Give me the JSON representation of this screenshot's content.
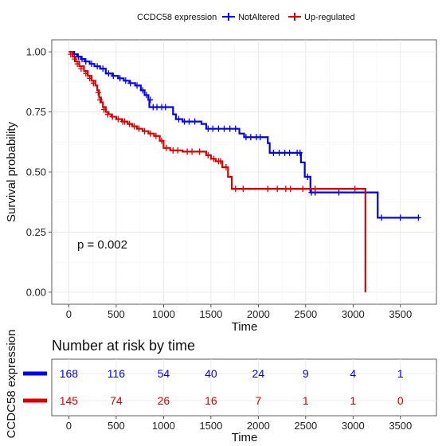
{
  "chart_data": {
    "type": "line",
    "subtype": "kaplan-meier",
    "legend": {
      "title": "CCDC58 expression",
      "placement": "top",
      "entries": [
        "NotAltered",
        "Up-regulated"
      ]
    },
    "xlabel": "Time",
    "ylabel": "Survival probability",
    "xlim": [
      -180,
      3880
    ],
    "ylim": [
      -0.05,
      1.05
    ],
    "xticks": [
      0,
      500,
      1000,
      1500,
      2000,
      2500,
      3000,
      3500
    ],
    "xtick_labels": [
      "0",
      "500",
      "1000",
      "1500",
      "2000",
      "2500",
      "3000",
      "3500"
    ],
    "yticks": [
      0,
      0.25,
      0.5,
      0.75,
      1.0
    ],
    "ytick_labels": [
      "0.00",
      "0.25",
      "0.50",
      "0.75",
      "1.00"
    ],
    "grid": true,
    "annotation": "p = 0.002",
    "series": [
      {
        "name": "NotAltered",
        "color": "#0000ff",
        "steps": [
          [
            0,
            1.0
          ],
          [
            50,
            0.99
          ],
          [
            90,
            0.98
          ],
          [
            130,
            0.97
          ],
          [
            170,
            0.96
          ],
          [
            220,
            0.95
          ],
          [
            270,
            0.94
          ],
          [
            330,
            0.93
          ],
          [
            390,
            0.91
          ],
          [
            460,
            0.9
          ],
          [
            520,
            0.89
          ],
          [
            580,
            0.88
          ],
          [
            640,
            0.87
          ],
          [
            700,
            0.86
          ],
          [
            760,
            0.84
          ],
          [
            800,
            0.82
          ],
          [
            840,
            0.8
          ],
          [
            850,
            0.77
          ],
          [
            1100,
            0.74
          ],
          [
            1130,
            0.72
          ],
          [
            1200,
            0.71
          ],
          [
            1400,
            0.7
          ],
          [
            1450,
            0.68
          ],
          [
            1800,
            0.66
          ],
          [
            1850,
            0.645
          ],
          [
            2100,
            0.62
          ],
          [
            2120,
            0.58
          ],
          [
            2450,
            0.54
          ],
          [
            2490,
            0.48
          ],
          [
            2550,
            0.415
          ],
          [
            3260,
            0.31
          ],
          [
            3700,
            0.31
          ]
        ],
        "censor": [
          [
            60,
            0.99
          ],
          [
            100,
            0.98
          ],
          [
            140,
            0.97
          ],
          [
            180,
            0.96
          ],
          [
            240,
            0.95
          ],
          [
            300,
            0.94
          ],
          [
            360,
            0.93
          ],
          [
            420,
            0.91
          ],
          [
            470,
            0.9
          ],
          [
            540,
            0.89
          ],
          [
            600,
            0.88
          ],
          [
            650,
            0.87
          ],
          [
            720,
            0.86
          ],
          [
            780,
            0.84
          ],
          [
            820,
            0.82
          ],
          [
            860,
            0.8
          ],
          [
            890,
            0.77
          ],
          [
            930,
            0.77
          ],
          [
            980,
            0.77
          ],
          [
            1020,
            0.77
          ],
          [
            1160,
            0.72
          ],
          [
            1220,
            0.71
          ],
          [
            1270,
            0.71
          ],
          [
            1330,
            0.71
          ],
          [
            1470,
            0.68
          ],
          [
            1520,
            0.68
          ],
          [
            1580,
            0.68
          ],
          [
            1640,
            0.68
          ],
          [
            1700,
            0.68
          ],
          [
            1760,
            0.68
          ],
          [
            1870,
            0.645
          ],
          [
            1920,
            0.645
          ],
          [
            1980,
            0.645
          ],
          [
            2020,
            0.645
          ],
          [
            2160,
            0.58
          ],
          [
            2220,
            0.58
          ],
          [
            2280,
            0.58
          ],
          [
            2330,
            0.58
          ],
          [
            2410,
            0.58
          ],
          [
            2440,
            0.58
          ],
          [
            2520,
            0.48
          ],
          [
            2560,
            0.415
          ],
          [
            2600,
            0.415
          ],
          [
            2850,
            0.415
          ],
          [
            3300,
            0.31
          ],
          [
            3500,
            0.31
          ],
          [
            3690,
            0.31
          ]
        ]
      },
      {
        "name": "Up-regulated",
        "color": "#dd0000",
        "steps": [
          [
            0,
            1.0
          ],
          [
            40,
            0.98
          ],
          [
            70,
            0.96
          ],
          [
            110,
            0.94
          ],
          [
            160,
            0.92
          ],
          [
            200,
            0.9
          ],
          [
            240,
            0.88
          ],
          [
            280,
            0.86
          ],
          [
            300,
            0.84
          ],
          [
            320,
            0.81
          ],
          [
            340,
            0.79
          ],
          [
            360,
            0.77
          ],
          [
            390,
            0.75
          ],
          [
            420,
            0.74
          ],
          [
            450,
            0.73
          ],
          [
            500,
            0.72
          ],
          [
            560,
            0.71
          ],
          [
            620,
            0.7
          ],
          [
            670,
            0.69
          ],
          [
            720,
            0.68
          ],
          [
            780,
            0.67
          ],
          [
            840,
            0.66
          ],
          [
            900,
            0.65
          ],
          [
            960,
            0.63
          ],
          [
            1000,
            0.6
          ],
          [
            1070,
            0.59
          ],
          [
            1200,
            0.585
          ],
          [
            1450,
            0.57
          ],
          [
            1500,
            0.555
          ],
          [
            1550,
            0.545
          ],
          [
            1620,
            0.52
          ],
          [
            1680,
            0.48
          ],
          [
            1720,
            0.43
          ],
          [
            3120,
            0.43
          ],
          [
            3130,
            0.0
          ]
        ],
        "censor": [
          [
            20,
            0.99
          ],
          [
            60,
            0.97
          ],
          [
            90,
            0.95
          ],
          [
            130,
            0.93
          ],
          [
            180,
            0.91
          ],
          [
            220,
            0.89
          ],
          [
            260,
            0.87
          ],
          [
            310,
            0.83
          ],
          [
            330,
            0.8
          ],
          [
            370,
            0.76
          ],
          [
            410,
            0.74
          ],
          [
            460,
            0.73
          ],
          [
            520,
            0.72
          ],
          [
            570,
            0.71
          ],
          [
            590,
            0.71
          ],
          [
            640,
            0.7
          ],
          [
            690,
            0.69
          ],
          [
            740,
            0.68
          ],
          [
            800,
            0.67
          ],
          [
            860,
            0.66
          ],
          [
            920,
            0.65
          ],
          [
            980,
            0.63
          ],
          [
            1030,
            0.6
          ],
          [
            1100,
            0.59
          ],
          [
            1150,
            0.59
          ],
          [
            1250,
            0.585
          ],
          [
            1300,
            0.585
          ],
          [
            1380,
            0.585
          ],
          [
            1470,
            0.57
          ],
          [
            1530,
            0.555
          ],
          [
            1580,
            0.545
          ],
          [
            1600,
            0.545
          ],
          [
            1660,
            0.52
          ],
          [
            1760,
            0.43
          ],
          [
            1840,
            0.43
          ],
          [
            2100,
            0.43
          ],
          [
            2200,
            0.43
          ],
          [
            2290,
            0.43
          ],
          [
            2340,
            0.43
          ],
          [
            2470,
            0.43
          ],
          [
            2600,
            0.43
          ],
          [
            3020,
            0.43
          ]
        ]
      }
    ]
  },
  "risk_table": {
    "title": "Number at risk by time",
    "ylabel": "CCDC58 expression",
    "xlabel": "Time",
    "times": [
      0,
      500,
      1000,
      1500,
      2000,
      2500,
      3000,
      3500
    ],
    "xtick_labels": [
      "0",
      "500",
      "1000",
      "1500",
      "2000",
      "2500",
      "3000",
      "3500"
    ],
    "rows": [
      {
        "color": "#0000ff",
        "counts": [
          "168",
          "116",
          "54",
          "40",
          "24",
          "9",
          "4",
          "1"
        ]
      },
      {
        "color": "#dd0000",
        "counts": [
          "145",
          "74",
          "26",
          "16",
          "7",
          "1",
          "1",
          "0"
        ]
      }
    ]
  }
}
